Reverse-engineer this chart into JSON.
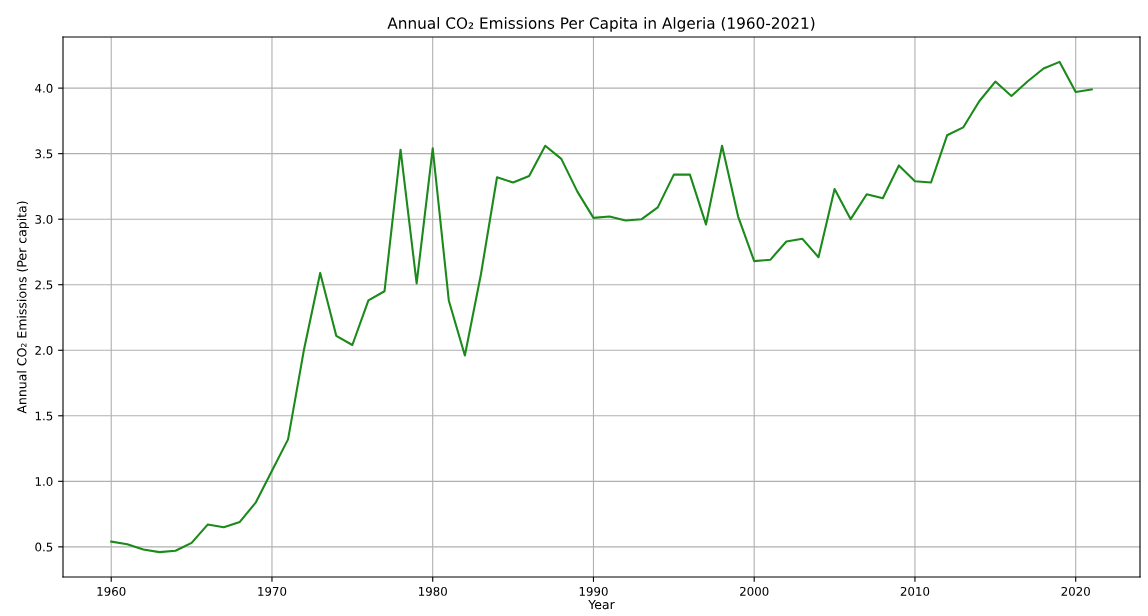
{
  "chart_data": {
    "type": "line",
    "title": "Annual CO₂ Emissions Per Capita in Algeria (1960-2021)",
    "xlabel": "Year",
    "ylabel": "Annual CO₂ Emissions (Per capita)",
    "x": [
      1960,
      1961,
      1962,
      1963,
      1964,
      1965,
      1966,
      1967,
      1968,
      1969,
      1970,
      1971,
      1972,
      1973,
      1974,
      1975,
      1976,
      1977,
      1978,
      1979,
      1980,
      1981,
      1982,
      1983,
      1984,
      1985,
      1986,
      1987,
      1988,
      1989,
      1990,
      1991,
      1992,
      1993,
      1994,
      1995,
      1996,
      1997,
      1998,
      1999,
      2000,
      2001,
      2002,
      2003,
      2004,
      2005,
      2006,
      2007,
      2008,
      2009,
      2010,
      2011,
      2012,
      2013,
      2014,
      2015,
      2016,
      2017,
      2018,
      2019,
      2020,
      2021
    ],
    "series": [
      {
        "color": "#1a8a1a",
        "values": [
          0.54,
          0.52,
          0.48,
          0.46,
          0.47,
          0.53,
          0.67,
          0.65,
          0.69,
          0.84,
          1.08,
          1.32,
          2.01,
          2.59,
          2.11,
          2.04,
          2.38,
          2.45,
          3.53,
          2.51,
          3.54,
          2.38,
          1.96,
          2.58,
          3.32,
          3.28,
          3.33,
          3.56,
          3.46,
          3.21,
          3.01,
          3.02,
          2.99,
          3.0,
          3.09,
          3.34,
          3.34,
          2.96,
          3.56,
          3.02,
          2.68,
          2.69,
          2.83,
          2.85,
          2.71,
          3.23,
          3.0,
          3.19,
          3.16,
          3.41,
          3.29,
          3.28,
          3.64,
          3.7,
          3.9,
          4.05,
          3.94,
          4.05,
          4.15,
          4.2,
          3.97,
          3.99
        ]
      }
    ],
    "xlim": [
      1957,
      2024
    ],
    "xticks": [
      1960,
      1970,
      1980,
      1990,
      2000,
      2010,
      2020
    ],
    "ylim": [
      0.27,
      4.39
    ],
    "yticks": [
      0.5,
      {
        "value": 1,
        "label": "1.0"
      },
      1.5,
      {
        "value": 2,
        "label": "2.0"
      },
      2.5,
      {
        "value": 3,
        "label": "3.0"
      },
      3.5,
      {
        "value": 4,
        "label": "4.0"
      }
    ],
    "grid": true,
    "marker": "none",
    "line_style": "solid"
  }
}
